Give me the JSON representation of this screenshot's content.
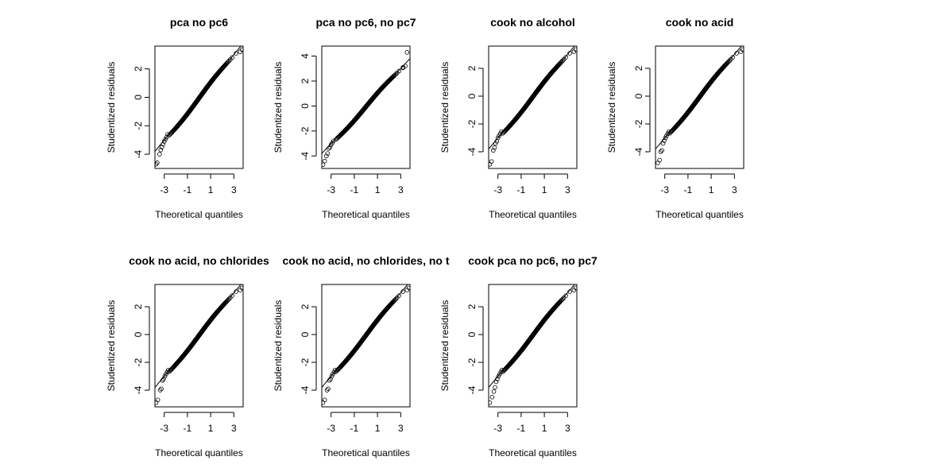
{
  "chart_data": [
    {
      "type": "scatter",
      "title": "pca no pc6",
      "xlabel": "Theoretical quantiles",
      "ylabel": "Studentized residuals",
      "xlim": [
        -3.8,
        3.8
      ],
      "ylim": [
        -5.0,
        3.6
      ],
      "xticks": [
        "-3",
        "-1",
        "1",
        "3"
      ],
      "yticks": [
        "-4",
        "-2",
        "0",
        "2"
      ],
      "reference_line": {
        "slope": 1.0,
        "intercept": 0.0
      },
      "tail_points": {
        "lower": [
          [
            -3.7,
            -4.7
          ],
          [
            -3.6,
            -4.6
          ],
          [
            -3.4,
            -4.0
          ],
          [
            -3.3,
            -3.7
          ],
          [
            -3.2,
            -3.5
          ],
          [
            -3.1,
            -3.3
          ],
          [
            -3.0,
            -3.1
          ],
          [
            -2.9,
            -2.95
          ],
          [
            -2.8,
            -2.8
          ],
          [
            -2.7,
            -2.6
          ]
        ],
        "upper": [
          [
            3.55,
            3.2
          ],
          [
            3.7,
            3.35
          ]
        ]
      },
      "cap": 3.2
    },
    {
      "type": "scatter",
      "title": "pca no pc6, no pc7",
      "xlabel": "Theoretical quantiles",
      "ylabel": "Studentized residuals",
      "xlim": [
        -3.8,
        3.8
      ],
      "ylim": [
        -5.0,
        4.8
      ],
      "xticks": [
        "-3",
        "-1",
        "1",
        "3"
      ],
      "yticks": [
        "-4",
        "-2",
        "0",
        "2",
        "4"
      ],
      "reference_line": {
        "slope": 1.0,
        "intercept": 0.0
      },
      "tail_points": {
        "lower": [
          [
            -3.7,
            -4.7
          ],
          [
            -3.55,
            -4.4
          ],
          [
            -3.4,
            -4.0
          ],
          [
            -3.3,
            -3.8
          ],
          [
            -3.2,
            -3.4
          ],
          [
            -3.1,
            -3.3
          ],
          [
            -3.0,
            -3.1
          ],
          [
            -2.9,
            -2.95
          ],
          [
            -2.8,
            -2.8
          ]
        ],
        "upper": [
          [
            3.2,
            3.1
          ],
          [
            3.4,
            3.2
          ],
          [
            3.55,
            4.3
          ]
        ]
      },
      "cap": 3.05
    },
    {
      "type": "scatter",
      "title": "cook no alcohol",
      "xlabel": "Theoretical quantiles",
      "ylabel": "Studentized residuals",
      "xlim": [
        -3.8,
        3.8
      ],
      "ylim": [
        -5.2,
        3.6
      ],
      "xticks": [
        "-3",
        "-1",
        "1",
        "3"
      ],
      "yticks": [
        "-4",
        "-2",
        "0",
        "2"
      ],
      "reference_line": {
        "slope": 1.0,
        "intercept": 0.0
      },
      "tail_points": {
        "lower": [
          [
            -3.7,
            -4.9
          ],
          [
            -3.55,
            -4.7
          ],
          [
            -3.4,
            -3.9
          ],
          [
            -3.3,
            -3.7
          ],
          [
            -3.2,
            -3.4
          ],
          [
            -3.1,
            -3.25
          ],
          [
            -3.0,
            -3.0
          ],
          [
            -2.9,
            -2.85
          ],
          [
            -2.8,
            -2.7
          ],
          [
            -2.7,
            -2.55
          ]
        ],
        "upper": [
          [
            3.55,
            3.2
          ],
          [
            3.7,
            3.35
          ]
        ]
      },
      "cap": 3.2
    },
    {
      "type": "scatter",
      "title": "cook no acid",
      "xlabel": "Theoretical quantiles",
      "ylabel": "Studentized residuals",
      "xlim": [
        -3.8,
        3.8
      ],
      "ylim": [
        -5.2,
        3.6
      ],
      "xticks": [
        "-3",
        "-1",
        "1",
        "3"
      ],
      "yticks": [
        "-4",
        "-2",
        "0",
        "2"
      ],
      "reference_line": {
        "slope": 1.0,
        "intercept": 0.0
      },
      "tail_points": {
        "lower": [
          [
            -3.6,
            -4.8
          ],
          [
            -3.45,
            -4.6
          ],
          [
            -3.35,
            -4.0
          ],
          [
            -3.25,
            -3.9
          ],
          [
            -3.15,
            -3.4
          ],
          [
            -3.05,
            -3.2
          ],
          [
            -2.95,
            -3.0
          ],
          [
            -2.85,
            -2.85
          ],
          [
            -2.75,
            -2.7
          ],
          [
            -2.65,
            -2.55
          ]
        ],
        "upper": [
          [
            3.55,
            3.2
          ],
          [
            3.7,
            3.35
          ]
        ]
      },
      "cap": 3.2
    },
    {
      "type": "scatter",
      "title": "cook no acid, no chlorides",
      "xlabel": "Theoretical quantiles",
      "ylabel": "Studentized residuals",
      "xlim": [
        -3.8,
        3.8
      ],
      "ylim": [
        -5.2,
        3.6
      ],
      "xticks": [
        "-3",
        "-1",
        "1",
        "3"
      ],
      "yticks": [
        "-4",
        "-2",
        "0",
        "2"
      ],
      "reference_line": {
        "slope": 1.0,
        "intercept": 0.0
      },
      "tail_points": {
        "lower": [
          [
            -3.7,
            -4.9
          ],
          [
            -3.55,
            -4.7
          ],
          [
            -3.35,
            -4.0
          ],
          [
            -3.25,
            -3.9
          ],
          [
            -3.15,
            -3.3
          ],
          [
            -3.05,
            -3.2
          ],
          [
            -2.95,
            -3.0
          ],
          [
            -2.85,
            -2.85
          ],
          [
            -2.75,
            -2.7
          ],
          [
            -2.65,
            -2.55
          ]
        ],
        "upper": [
          [
            3.55,
            3.2
          ],
          [
            3.7,
            3.35
          ]
        ]
      },
      "cap": 3.2
    },
    {
      "type": "scatter",
      "title": "cook no acid, no chlorides, no t",
      "xlabel": "Theoretical quantiles",
      "ylabel": "Studentized residuals",
      "xlim": [
        -3.8,
        3.8
      ],
      "ylim": [
        -5.2,
        3.6
      ],
      "xticks": [
        "-3",
        "-1",
        "1",
        "3"
      ],
      "yticks": [
        "-4",
        "-2",
        "0",
        "2"
      ],
      "reference_line": {
        "slope": 1.0,
        "intercept": 0.0
      },
      "tail_points": {
        "lower": [
          [
            -3.7,
            -4.9
          ],
          [
            -3.55,
            -4.7
          ],
          [
            -3.35,
            -4.0
          ],
          [
            -3.25,
            -3.9
          ],
          [
            -3.15,
            -3.3
          ],
          [
            -3.05,
            -3.2
          ],
          [
            -2.95,
            -3.0
          ],
          [
            -2.85,
            -2.85
          ],
          [
            -2.75,
            -2.7
          ],
          [
            -2.65,
            -2.55
          ]
        ],
        "upper": [
          [
            3.55,
            3.2
          ],
          [
            3.7,
            3.35
          ]
        ]
      },
      "cap": 3.2
    },
    {
      "type": "scatter",
      "title": "cook pca no pc6, no pc7",
      "xlabel": "Theoretical quantiles",
      "ylabel": "Studentized residuals",
      "xlim": [
        -3.8,
        3.8
      ],
      "ylim": [
        -5.2,
        3.6
      ],
      "xticks": [
        "-3",
        "-1",
        "1",
        "3"
      ],
      "yticks": [
        "-4",
        "-2",
        "0",
        "2"
      ],
      "reference_line": {
        "slope": 1.0,
        "intercept": 0.0
      },
      "tail_points": {
        "lower": [
          [
            -3.7,
            -4.9
          ],
          [
            -3.5,
            -4.5
          ],
          [
            -3.35,
            -4.1
          ],
          [
            -3.25,
            -3.8
          ],
          [
            -3.15,
            -3.4
          ],
          [
            -3.05,
            -3.2
          ],
          [
            -2.95,
            -3.0
          ],
          [
            -2.85,
            -2.85
          ],
          [
            -2.75,
            -2.7
          ],
          [
            -2.65,
            -2.55
          ]
        ],
        "upper": [
          [
            3.55,
            3.2
          ],
          [
            3.7,
            3.35
          ]
        ]
      },
      "cap": 3.2
    }
  ]
}
